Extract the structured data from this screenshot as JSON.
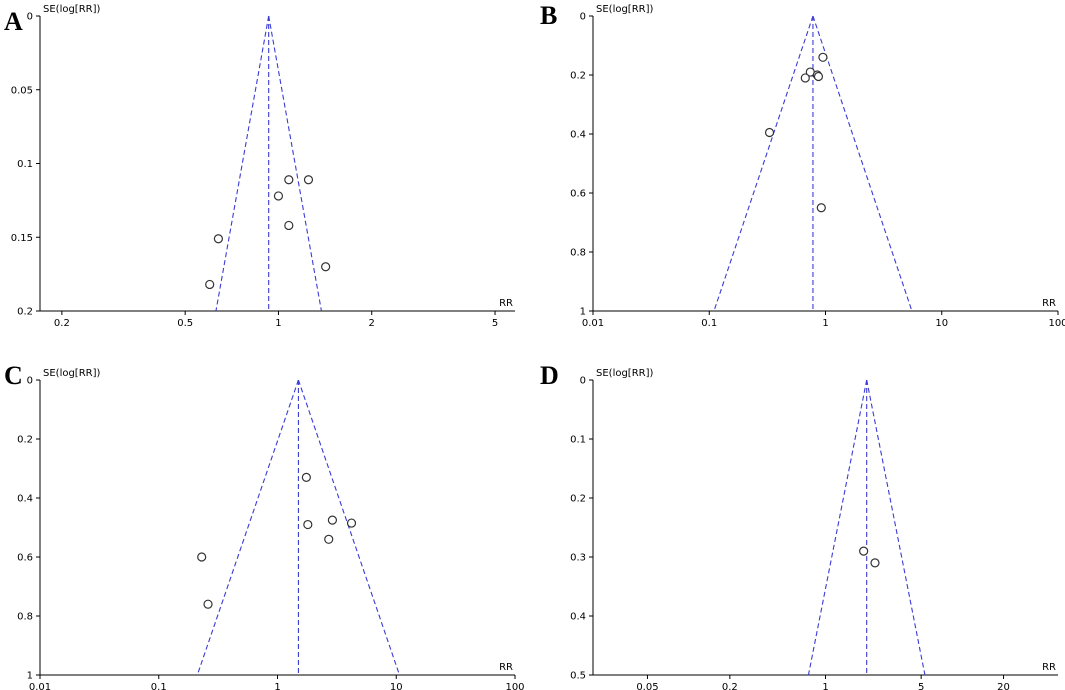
{
  "figure": {
    "panels": [
      "A",
      "B",
      "C",
      "D"
    ]
  },
  "chart_data": [
    {
      "panel": "A",
      "type": "scatter",
      "subtype": "funnel-plot",
      "x_scale": "log",
      "y_reversed": true,
      "xlabel": "RR",
      "ylabel": "SE(log[RR])",
      "xlim": [
        0.17,
        5.8
      ],
      "ylim": [
        0,
        0.2
      ],
      "x_ticks": [
        0.2,
        0.5,
        1,
        2,
        5
      ],
      "x_tick_labels": [
        "0.2",
        "0.5",
        "1",
        "2",
        "5"
      ],
      "y_ticks": [
        0,
        0.05,
        0.1,
        0.15,
        0.2
      ],
      "y_tick_labels": [
        "0",
        "0.05",
        "0.1",
        "0.15",
        "0.2"
      ],
      "pooled_rr": 0.93,
      "funnel": "95% CI bounds (dashed)",
      "line_color": "#3b3bd6",
      "points": [
        {
          "x": 1.08,
          "y": 0.111
        },
        {
          "x": 1.25,
          "y": 0.111
        },
        {
          "x": 1.0,
          "y": 0.122
        },
        {
          "x": 1.08,
          "y": 0.142
        },
        {
          "x": 0.64,
          "y": 0.151
        },
        {
          "x": 1.42,
          "y": 0.17
        },
        {
          "x": 0.6,
          "y": 0.182
        }
      ]
    },
    {
      "panel": "B",
      "type": "scatter",
      "subtype": "funnel-plot",
      "x_scale": "log",
      "y_reversed": true,
      "xlabel": "RR",
      "ylabel": "SE(log[RR])",
      "xlim": [
        0.01,
        100
      ],
      "ylim": [
        0,
        1
      ],
      "x_ticks": [
        0.01,
        0.1,
        1,
        10,
        100
      ],
      "x_tick_labels": [
        "0.01",
        "0.1",
        "1",
        "10",
        "100"
      ],
      "y_ticks": [
        0,
        0.2,
        0.4,
        0.6,
        0.8,
        1
      ],
      "y_tick_labels": [
        "0",
        "0.2",
        "0.4",
        "0.6",
        "0.8",
        "1"
      ],
      "pooled_rr": 0.78,
      "funnel": "95% CI bounds (dashed)",
      "line_color": "#3b3bd6",
      "points": [
        {
          "x": 0.95,
          "y": 0.14
        },
        {
          "x": 0.74,
          "y": 0.19
        },
        {
          "x": 0.85,
          "y": 0.2
        },
        {
          "x": 0.87,
          "y": 0.205
        },
        {
          "x": 0.67,
          "y": 0.21
        },
        {
          "x": 0.33,
          "y": 0.395
        },
        {
          "x": 0.92,
          "y": 0.65
        }
      ]
    },
    {
      "panel": "C",
      "type": "scatter",
      "subtype": "funnel-plot",
      "x_scale": "log",
      "y_reversed": true,
      "xlabel": "RR",
      "ylabel": "SE(log[RR])",
      "xlim": [
        0.01,
        100
      ],
      "ylim": [
        0,
        1
      ],
      "x_ticks": [
        0.01,
        0.1,
        1,
        10,
        100
      ],
      "x_tick_labels": [
        "0.01",
        "0.1",
        "1",
        "10",
        "100"
      ],
      "y_ticks": [
        0,
        0.2,
        0.4,
        0.6,
        0.8,
        1
      ],
      "y_tick_labels": [
        "0",
        "0.2",
        "0.4",
        "0.6",
        "0.8",
        "1"
      ],
      "pooled_rr": 1.5,
      "funnel": "95% CI bounds (dashed)",
      "line_color": "#3b3bd6",
      "points": [
        {
          "x": 1.75,
          "y": 0.33
        },
        {
          "x": 2.9,
          "y": 0.475
        },
        {
          "x": 4.2,
          "y": 0.485
        },
        {
          "x": 1.8,
          "y": 0.49
        },
        {
          "x": 2.7,
          "y": 0.54
        },
        {
          "x": 0.23,
          "y": 0.6
        },
        {
          "x": 0.26,
          "y": 0.76
        }
      ]
    },
    {
      "panel": "D",
      "type": "scatter",
      "subtype": "funnel-plot",
      "x_scale": "log",
      "y_reversed": true,
      "xlabel": "RR",
      "ylabel": "SE(log[RR])",
      "xlim": [
        0.02,
        50
      ],
      "ylim": [
        0,
        0.5
      ],
      "x_ticks": [
        0.05,
        0.2,
        1,
        5,
        20
      ],
      "x_tick_labels": [
        "0.05",
        "0.2",
        "1",
        "5",
        "20"
      ],
      "y_ticks": [
        0,
        0.1,
        0.2,
        0.3,
        0.4,
        0.5
      ],
      "y_tick_labels": [
        "0",
        "0.1",
        "0.2",
        "0.3",
        "0.4",
        "0.5"
      ],
      "pooled_rr": 2.0,
      "funnel": "95% CI bounds (dashed)",
      "line_color": "#3b3bd6",
      "points": [
        {
          "x": 1.9,
          "y": 0.29
        },
        {
          "x": 2.3,
          "y": 0.31
        }
      ]
    }
  ]
}
